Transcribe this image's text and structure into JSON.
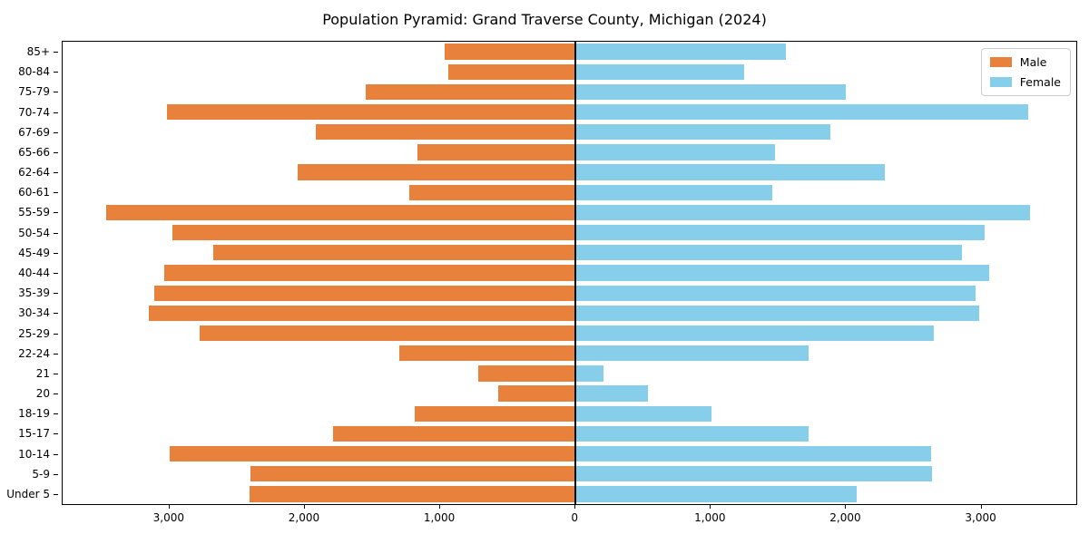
{
  "figure": {
    "title": "Population Pyramid: Grand Traverse County, Michigan (2024)"
  },
  "legend": {
    "male_label": "Male",
    "female_label": "Female"
  },
  "chart_data": {
    "type": "bar",
    "variant": "population-pyramid",
    "title": "Population Pyramid: Grand Traverse County, Michigan (2024)",
    "categories_top_to_bottom": [
      "85+",
      "80-84",
      "75-79",
      "70-74",
      "67-69",
      "65-66",
      "62-64",
      "60-61",
      "55-59",
      "50-54",
      "45-49",
      "40-44",
      "35-39",
      "30-34",
      "25-29",
      "22-24",
      "21",
      "20",
      "18-19",
      "15-17",
      "10-14",
      "5-9",
      "Under 5"
    ],
    "series": [
      {
        "name": "Male",
        "side": "left",
        "color": "#e8813b",
        "values": [
          970,
          940,
          1550,
          3020,
          1920,
          1170,
          2050,
          1230,
          3470,
          2980,
          2680,
          3040,
          3110,
          3150,
          2780,
          1300,
          720,
          570,
          1190,
          1790,
          3000,
          2400,
          2410
        ]
      },
      {
        "name": "Female",
        "side": "right",
        "color": "#87ceeb",
        "values": [
          1550,
          1240,
          1990,
          3340,
          1880,
          1470,
          2280,
          1450,
          3350,
          3020,
          2850,
          3050,
          2950,
          2980,
          2640,
          1720,
          200,
          530,
          1000,
          1720,
          2620,
          2630,
          2070
        ]
      }
    ],
    "x_ticks": {
      "values": [
        -3000,
        -2000,
        -1000,
        0,
        1000,
        2000,
        3000
      ],
      "labels": [
        "3,000",
        "2,000",
        "1,000",
        "0",
        "1,000",
        "2,000",
        "3,000"
      ]
    },
    "xlim": [
      -3790,
      3700
    ],
    "grid": false,
    "zero_line": true,
    "legend_position": "upper right",
    "colors": {
      "male": "#e8813b",
      "female": "#87ceeb",
      "axis": "#000000",
      "legend_border": "#cccccc"
    }
  }
}
